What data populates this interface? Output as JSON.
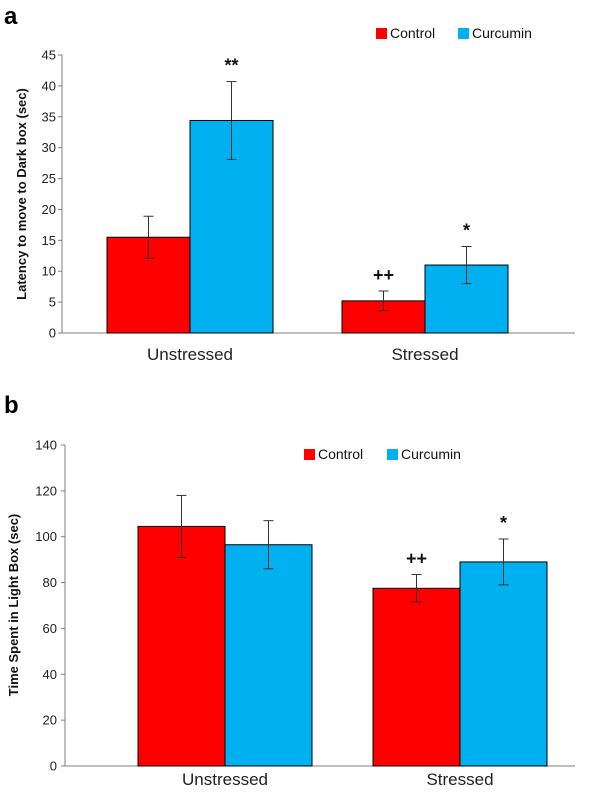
{
  "chart_data": [
    {
      "panel": "a",
      "type": "bar",
      "ylabel": "Latency to move to Dark box (sec)",
      "xlabel": "",
      "ylim": [
        0,
        45
      ],
      "yticks": [
        "0",
        "5",
        "10",
        "15",
        "20",
        "25",
        "30",
        "35",
        "40",
        "45"
      ],
      "categories": [
        "Unstressed",
        "Stressed"
      ],
      "series": [
        {
          "name": "Control",
          "color": "#ff0000",
          "values": [
            15.5,
            5.2
          ],
          "errors": [
            3.4,
            1.6
          ]
        },
        {
          "name": "Curcumin",
          "color": "#00b0f0",
          "values": [
            34.4,
            11.0
          ],
          "errors": [
            6.3,
            3.0
          ]
        }
      ],
      "annotations": [
        {
          "text": "**",
          "category": 0,
          "series": 1
        },
        {
          "text": "++",
          "category": 1,
          "series": 0
        },
        {
          "text": "*",
          "category": 1,
          "series": 1
        }
      ],
      "legend_position": "top-right",
      "grid": false
    },
    {
      "panel": "b",
      "type": "bar",
      "ylabel": "Time Spent in Light Box (sec)",
      "xlabel": "",
      "ylim": [
        0,
        140
      ],
      "yticks": [
        "0",
        "20",
        "40",
        "60",
        "80",
        "100",
        "120",
        "140"
      ],
      "categories": [
        "Unstressed",
        "Stressed"
      ],
      "series": [
        {
          "name": "Control",
          "color": "#ff0000",
          "values": [
            104.5,
            77.5
          ],
          "errors": [
            13.5,
            6.0
          ]
        },
        {
          "name": "Curcumin",
          "color": "#00b0f0",
          "values": [
            96.5,
            89.0
          ],
          "errors": [
            10.5,
            10.0
          ]
        }
      ],
      "annotations": [
        {
          "text": "++",
          "category": 1,
          "series": 0
        },
        {
          "text": "*",
          "category": 1,
          "series": 1
        }
      ],
      "legend_position": "top-right",
      "grid": false
    }
  ]
}
